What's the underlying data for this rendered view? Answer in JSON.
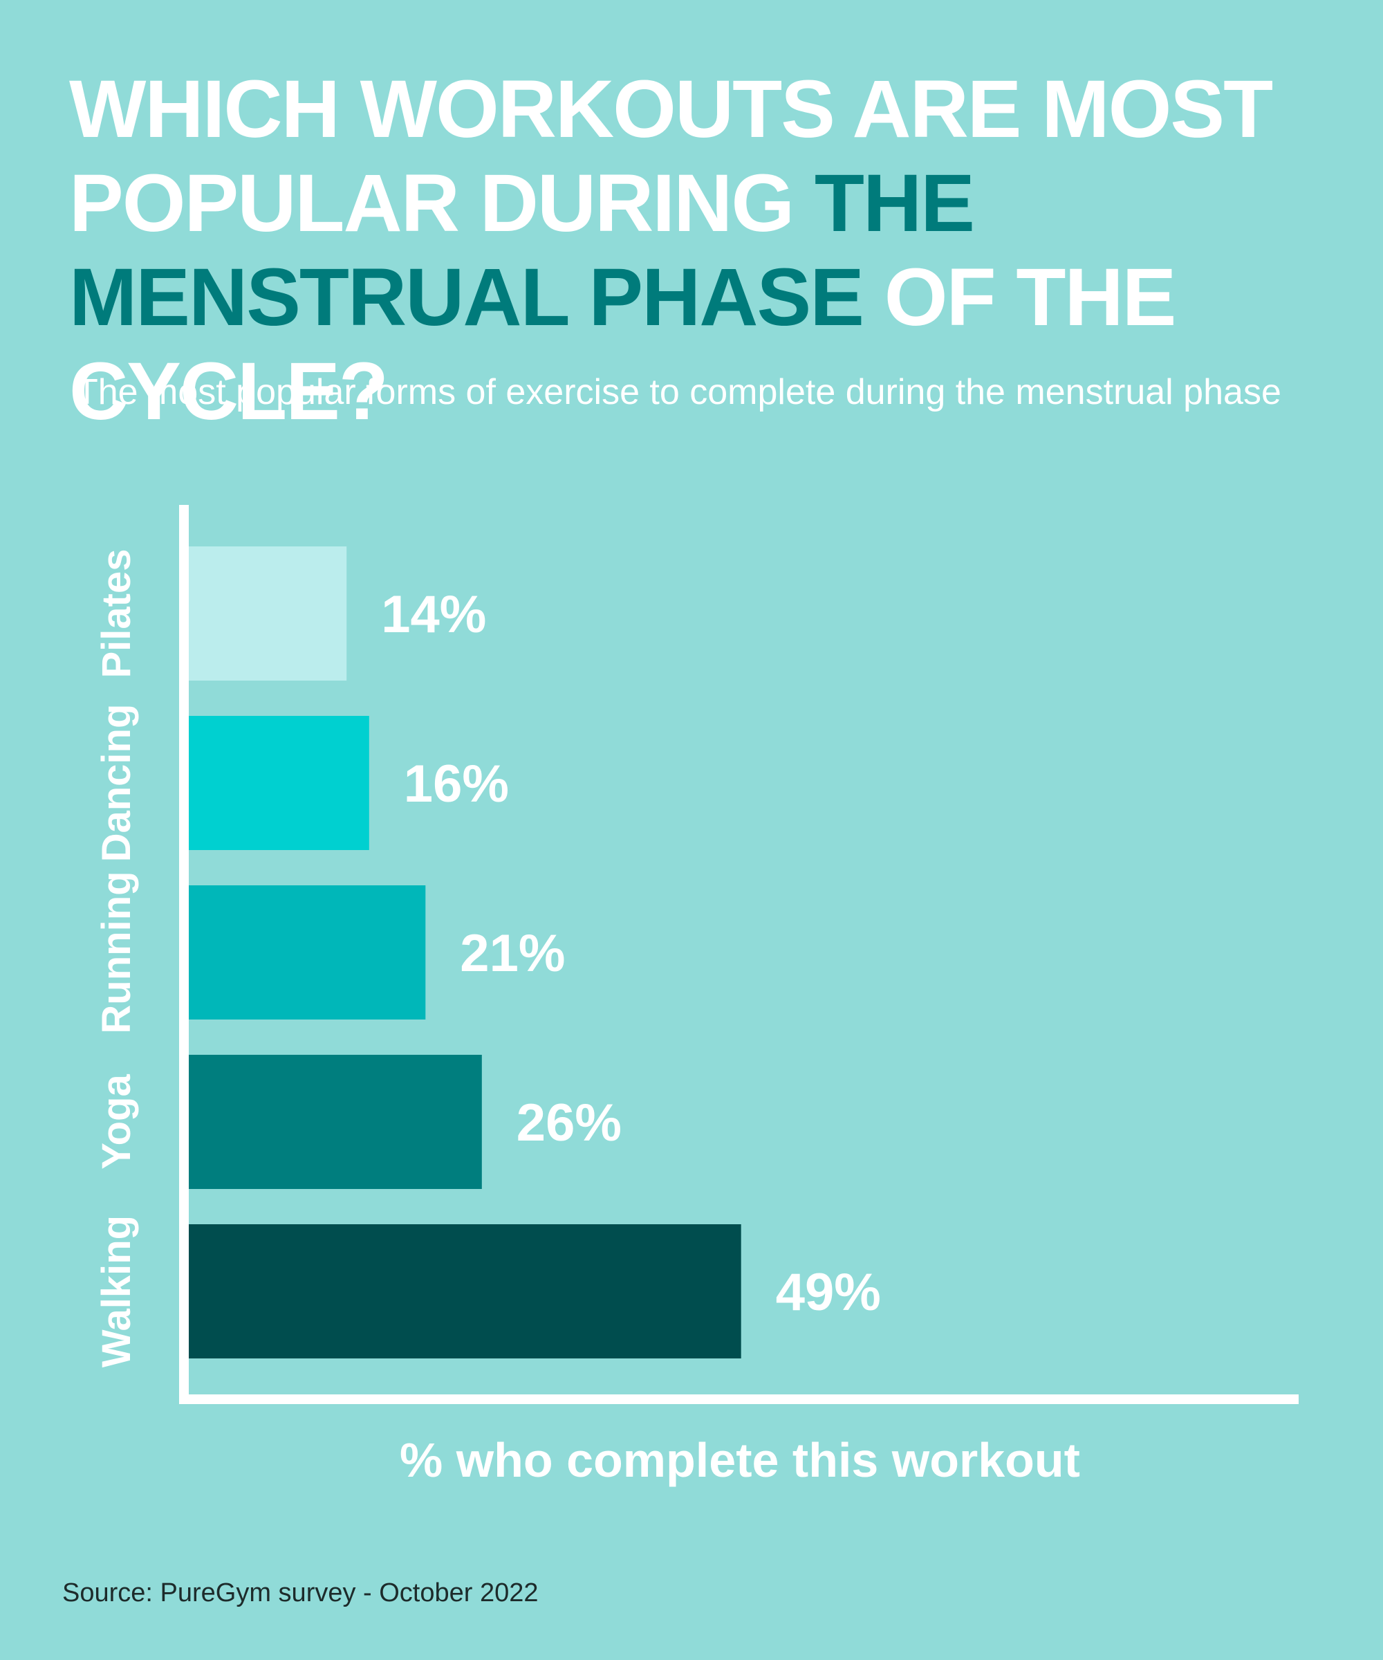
{
  "title": {
    "part1": "WHICH WORKOUTS ARE MOST POPULAR DURING ",
    "highlight": "THE MENSTRUAL PHASE",
    "part2": " OF THE CYCLE?"
  },
  "subtitle": "The most popular forms of exercise to complete during the menstrual phase",
  "source": "Source: PureGym survey - October 2022",
  "colors": {
    "background": "#90dbd8",
    "title": "#ffffff",
    "title_highlight": "#007b7b",
    "axis": "#ffffff",
    "label": "#ffffff"
  },
  "chart_data": {
    "type": "bar",
    "orientation": "horizontal",
    "categories": [
      "Pilates",
      "Dancing",
      "Running",
      "Yoga",
      "Walking"
    ],
    "values": [
      14,
      16,
      21,
      26,
      49
    ],
    "value_labels": [
      "14%",
      "16%",
      "21%",
      "26%",
      "49%"
    ],
    "bar_colors": [
      "#bbeded",
      "#00d0d0",
      "#00b7b9",
      "#007e7e",
      "#004d4e"
    ],
    "xlabel": "% who complete this workout",
    "xlim": [
      0,
      100
    ],
    "grid": false,
    "legend": "none"
  }
}
